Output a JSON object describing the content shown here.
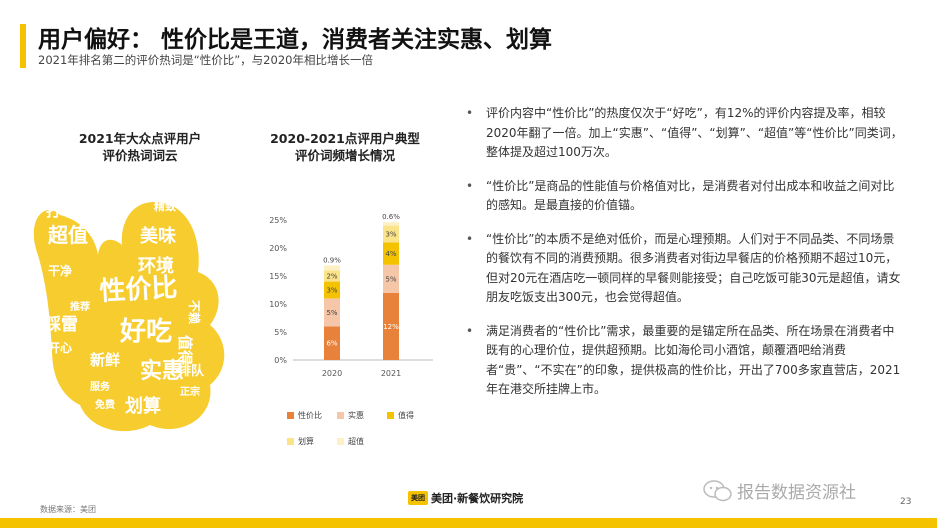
{
  "header": {
    "title": "用户偏好： 性价比是王道，消费者关注实惠、划算",
    "subtitle": "2021年排名第二的评价热词是“性价比”，与2020年相比增长一倍"
  },
  "word_cloud": {
    "title_line1": "2021年大众点评用户",
    "title_line2": "评价热词词云",
    "words": [
      "性价比",
      "好吃",
      "实惠",
      "超值",
      "美味",
      "环境",
      "划算",
      "打卡",
      "值得",
      "干净",
      "踩雷",
      "新鲜",
      "开心",
      "排队",
      "不赖",
      "精致",
      "服务",
      "正宗",
      "免费",
      "推荐"
    ]
  },
  "chart": {
    "title_line1": "2020-2021点评用户典型",
    "title_line2": "评价词频增长情况"
  },
  "chart_data": {
    "type": "bar",
    "stacked": true,
    "categories": [
      "2020",
      "2021"
    ],
    "series": [
      {
        "name": "性价比",
        "values": [
          6,
          12
        ],
        "labels": [
          "6%",
          "12%"
        ],
        "color": "#e8823a"
      },
      {
        "name": "实惠",
        "values": [
          5,
          5
        ],
        "labels": [
          "5%",
          "5%"
        ],
        "color": "#f5c6a8"
      },
      {
        "name": "值得",
        "values": [
          3,
          4
        ],
        "labels": [
          "3%",
          "4%"
        ],
        "color": "#f5c200"
      },
      {
        "name": "划算",
        "values": [
          2,
          3
        ],
        "labels": [
          "2%",
          "3%"
        ],
        "color": "#fbe38a"
      },
      {
        "name": "超值",
        "values": [
          0.9,
          0.6
        ],
        "labels": [
          "0.9%",
          "0.6%"
        ],
        "color": "#fdf0c4"
      }
    ],
    "yticks": [
      "0%",
      "5%",
      "10%",
      "15%",
      "20%",
      "25%"
    ],
    "ylim": [
      0,
      25
    ],
    "legend_position": "bottom"
  },
  "bullets": [
    "评价内容中“性价比”的热度仅次于“好吃”，有12%的评价内容提及率，相较2020年翻了一倍。加上“实惠”、“值得”、“划算”、“超值”等“性价比”同类词，整体提及超过100万次。",
    "“性价比”是商品的性能值与价格值对比，是消费者对付出成本和收益之间对比的感知。是最直接的价值锚。",
    "“性价比”的本质不是绝对低价，而是心理预期。人们对于不同品类、不同场景的餐饮有不同的消费预期。很多消费者对街边早餐店的价格预期不超过10元，但对20元在酒店吃一顿同样的早餐则能接受；自己吃饭可能30元是超值，请女朋友吃饭支出300元，也会觉得超值。",
    "满足消费者的“性价比”需求，最重要的是锚定所在品类、所在场景在消费者中既有的心理价位，提供超预期。比如海伦司小酒馆，颠覆酒吧给消费者“贵”、“不实在”的印象，提供极高的性价比，开出了700多家直营店，2021年在港交所挂牌上市。"
  ],
  "bullet_marker": "•",
  "footer": {
    "source": "数据来源：美团",
    "logo_box": "美团",
    "logo_text": "美团·新餐饮研究院",
    "watermark": "报告数据资源社",
    "page": "23"
  },
  "colors": {
    "accent": "#f5c200"
  }
}
